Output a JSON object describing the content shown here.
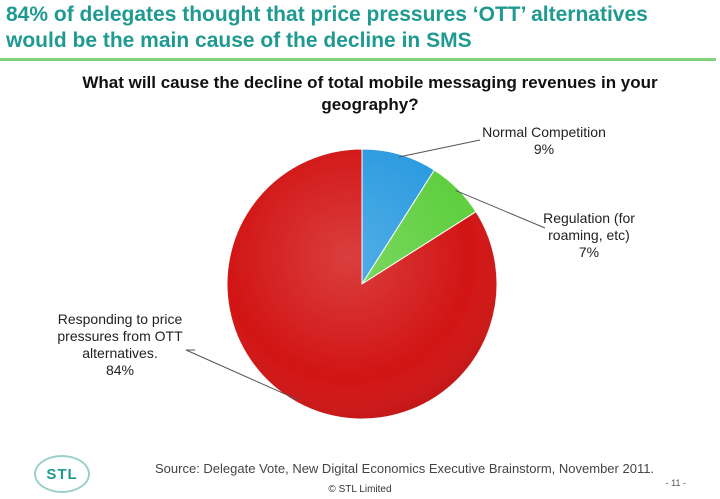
{
  "headline": "84% of delegates thought that price pressures ‘OTT’ alternatives would be the main cause of the decline in SMS",
  "footer": {
    "logo_text": "STL",
    "source": "Source: Delegate Vote, New Digital Economics Executive Brainstorm, November 2011.",
    "copyright": "© STL Limited",
    "page_number": "- 11 -"
  },
  "colors": {
    "headline": "#1f9a91",
    "rule": "#7fd37a",
    "normal_competition": "#2b9be0",
    "regulation": "#5fcf3f",
    "ott": "#d21414"
  },
  "chart_data": {
    "type": "pie",
    "title": "What will cause the decline of total mobile messaging revenues  in your geography?",
    "start_angle_deg": 0,
    "direction": "clockwise",
    "slices": [
      {
        "key": "normal",
        "label_lines": [
          "Normal Competition",
          "9%"
        ],
        "value": 9,
        "color": "#2b9be0"
      },
      {
        "key": "regulation",
        "label_lines": [
          "Regulation (for",
          "roaming, etc)",
          "7%"
        ],
        "value": 7,
        "color": "#5fcf3f"
      },
      {
        "key": "ott",
        "label_lines": [
          "Responding to price",
          "pressures from OTT",
          "alternatives.",
          "84%"
        ],
        "value": 84,
        "color": "#d21414"
      }
    ]
  }
}
